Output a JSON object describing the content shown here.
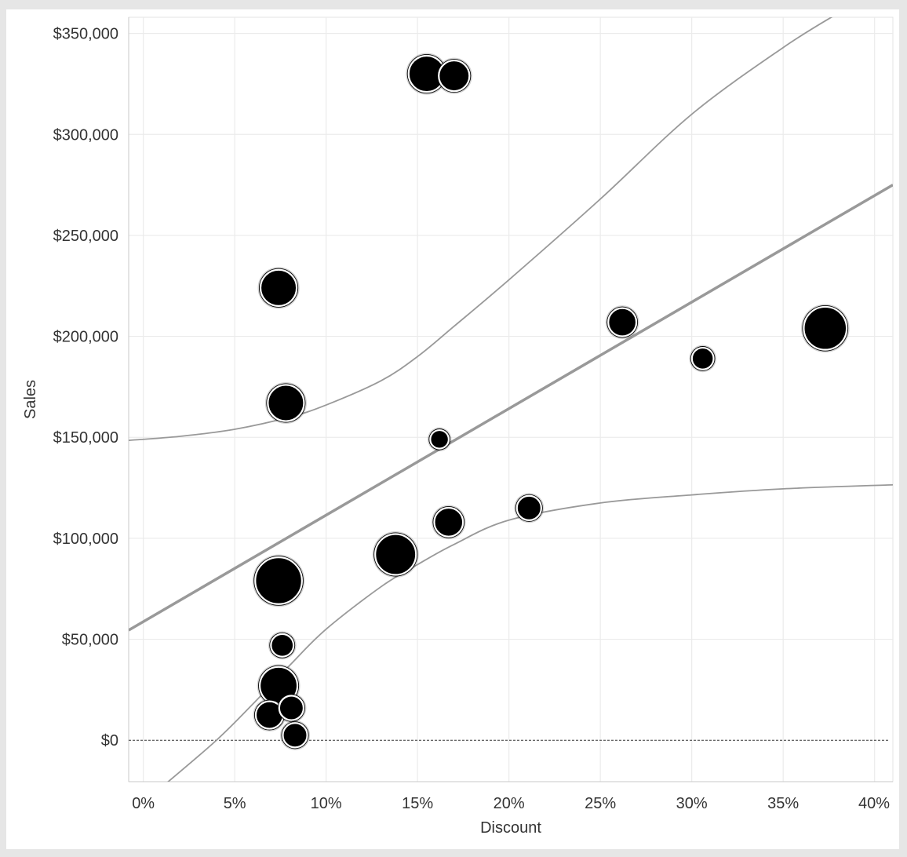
{
  "chart_data": {
    "type": "scatter",
    "title": "",
    "xlabel": "Discount",
    "ylabel": "Sales",
    "x_format": "percent",
    "y_format": "currency",
    "xlim": [
      -0.008,
      0.41
    ],
    "ylim": [
      -20500,
      358000
    ],
    "x_ticks": [
      0,
      0.05,
      0.1,
      0.15,
      0.2,
      0.25,
      0.3,
      0.35,
      0.4
    ],
    "x_tick_labels": [
      "0%",
      "5%",
      "10%",
      "15%",
      "20%",
      "25%",
      "30%",
      "35%",
      "40%"
    ],
    "y_ticks": [
      0,
      50000,
      100000,
      150000,
      200000,
      250000,
      300000,
      350000
    ],
    "y_tick_labels": [
      "$0",
      "$50,000",
      "$100,000",
      "$150,000",
      "$200,000",
      "$250,000",
      "$300,000",
      "$350,000"
    ],
    "grid": true,
    "zero_line": "dashed",
    "mark_color": "#000000",
    "trend_color": "#999999",
    "points": [
      {
        "x": 0.155,
        "y": 330000,
        "size": 3
      },
      {
        "x": 0.17,
        "y": 329000,
        "size": 2
      },
      {
        "x": 0.074,
        "y": 224000,
        "size": 3
      },
      {
        "x": 0.078,
        "y": 167000,
        "size": 3
      },
      {
        "x": 0.262,
        "y": 207000,
        "size": 1.6
      },
      {
        "x": 0.306,
        "y": 189000,
        "size": 0.8
      },
      {
        "x": 0.373,
        "y": 204000,
        "size": 4.5
      },
      {
        "x": 0.162,
        "y": 149000,
        "size": 0.5
      },
      {
        "x": 0.167,
        "y": 108000,
        "size": 1.7
      },
      {
        "x": 0.211,
        "y": 115000,
        "size": 1.1
      },
      {
        "x": 0.138,
        "y": 92000,
        "size": 4
      },
      {
        "x": 0.074,
        "y": 79000,
        "size": 5.5
      },
      {
        "x": 0.076,
        "y": 47000,
        "size": 0.9
      },
      {
        "x": 0.074,
        "y": 27000,
        "size": 3.3
      },
      {
        "x": 0.069,
        "y": 12500,
        "size": 1.5
      },
      {
        "x": 0.081,
        "y": 16000,
        "size": 1.1
      },
      {
        "x": 0.083,
        "y": 2500,
        "size": 1.1
      }
    ],
    "trend_line": {
      "x": [
        -0.008,
        0.41
      ],
      "y": [
        54500,
        275000
      ]
    },
    "upper_band": {
      "x": [
        -0.008,
        0.02,
        0.05,
        0.08,
        0.1,
        0.13,
        0.15,
        0.17,
        0.2,
        0.25,
        0.3,
        0.35,
        0.38
      ],
      "y": [
        148500,
        150500,
        154000,
        160000,
        166000,
        178000,
        190000,
        205000,
        228000,
        268000,
        310000,
        343000,
        360000
      ]
    },
    "lower_band": {
      "x": [
        0.013,
        0.04,
        0.06,
        0.08,
        0.1,
        0.13,
        0.15,
        0.17,
        0.2,
        0.25,
        0.3,
        0.35,
        0.41
      ],
      "y": [
        -21000,
        0,
        18000,
        37000,
        55000,
        76000,
        87000,
        97000,
        109000,
        117500,
        121500,
        124500,
        126500
      ]
    }
  }
}
